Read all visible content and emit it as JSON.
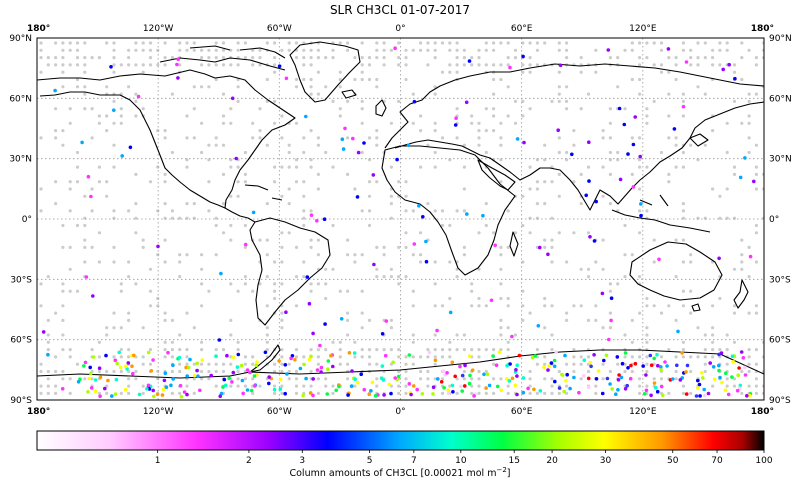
{
  "title": "SLR CH3CL 01-07-2017",
  "lon_labels": [
    "180°",
    "120°W",
    "60°W",
    "0°",
    "60°E",
    "120°E",
    "180°"
  ],
  "lon_values": [
    -180,
    -120,
    -60,
    0,
    60,
    120,
    180
  ],
  "lat_labels": [
    "90°N",
    "60°N",
    "30°N",
    "0°",
    "30°S",
    "60°S",
    "90°S"
  ],
  "lat_values": [
    90,
    60,
    30,
    0,
    -30,
    -60,
    -90
  ],
  "colorbar": {
    "ticks": [
      "1",
      "2",
      "3",
      "5",
      "7",
      "10",
      "15",
      "20",
      "30",
      "50",
      "70",
      "100"
    ],
    "tick_values": [
      1,
      2,
      3,
      5,
      7,
      10,
      15,
      20,
      30,
      50,
      70,
      100
    ],
    "min": 0.4,
    "max": 100,
    "scale": "log",
    "label_main": "Column amounts of CH3CL [0.00021 mol m",
    "label_sup": "−2",
    "label_end": "]"
  },
  "colors": {
    "land_outline": "#000000",
    "no_data_dot": "#cccccc",
    "grid": "#999999"
  }
}
